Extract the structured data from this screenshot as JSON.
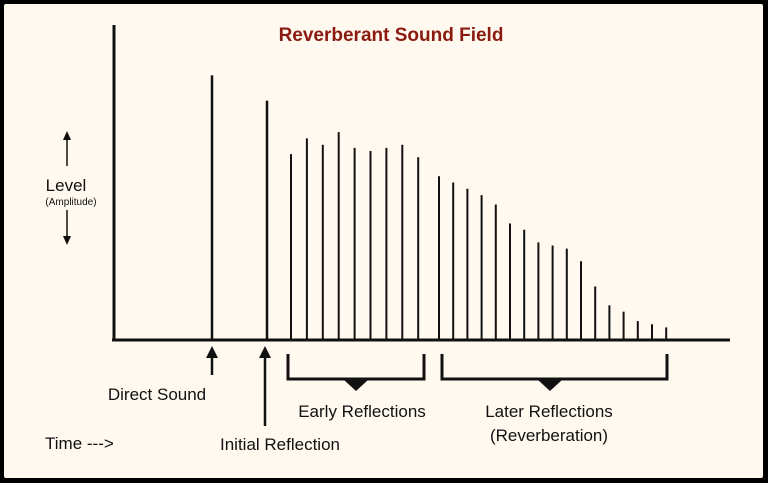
{
  "title": "Reverberant Sound Field",
  "y_label": "Level",
  "y_sublabel": "(Amplitude)",
  "x_label": "Time --->",
  "labels": {
    "direct": "Direct Sound",
    "initial": "Initial Reflection",
    "early": "Early Reflections",
    "later_line1": "Later Reflections",
    "later_line2": "(Reverberation)"
  },
  "colors": {
    "title": "#8b1a10",
    "background": "#fff9ef",
    "frame": "#000000",
    "lines": "#111111"
  },
  "direct_level": 0.84,
  "initial_level": 0.76,
  "early_levels": [
    0.59,
    0.64,
    0.62,
    0.66,
    0.61,
    0.6,
    0.61,
    0.62,
    0.58
  ],
  "later_levels": [
    0.52,
    0.5,
    0.48,
    0.46,
    0.43,
    0.37,
    0.35,
    0.31,
    0.3,
    0.29,
    0.25,
    0.17,
    0.11,
    0.09,
    0.06,
    0.05,
    0.04
  ]
}
